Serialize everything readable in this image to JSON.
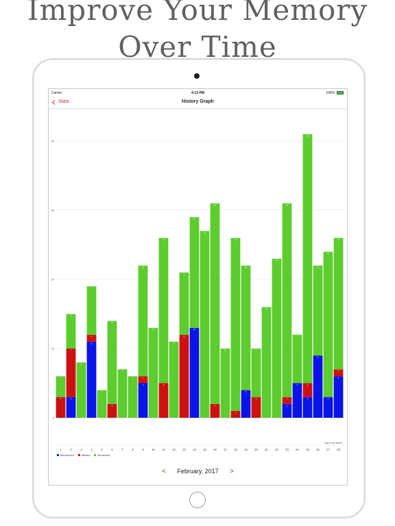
{
  "promo": {
    "line1": "Improve Your Memory",
    "line2": "Over Time"
  },
  "status_bar": {
    "carrier": "Carrier",
    "time": "4:13 PM",
    "battery": "100%"
  },
  "nav": {
    "back_label": "Stats",
    "title": "History Graph"
  },
  "footer": {
    "month_label": "February, 2017",
    "prev_icon": "chevron-left-icon",
    "next_icon": "chevron-right-icon"
  },
  "colors": {
    "memorized": "#0a14e6",
    "missed": "#cc1111",
    "reviewed": "#5ccc2e",
    "accent": "#c12a2a"
  },
  "chart_data": {
    "type": "bar",
    "stacked": true,
    "xlabel": "Day of the Month",
    "ylim": [
      0,
      45
    ],
    "yticks": [
      0,
      10,
      20,
      30,
      40
    ],
    "categories": [
      "1",
      "2",
      "3",
      "4",
      "5",
      "6",
      "7",
      "8",
      "9",
      "10",
      "11",
      "12",
      "13",
      "14",
      "15",
      "16",
      "17",
      "18",
      "19",
      "20",
      "21",
      "22",
      "23",
      "24",
      "25",
      "26",
      "27",
      "28"
    ],
    "series": [
      {
        "name": "Memorized",
        "values": [
          0,
          3,
          0,
          11,
          0,
          0,
          0,
          0,
          5,
          0,
          0,
          0,
          0,
          13,
          0,
          0,
          0,
          0,
          4,
          0,
          0,
          0,
          2,
          5,
          3,
          9,
          3,
          6
        ]
      },
      {
        "name": "Missed",
        "values": [
          3,
          7,
          0,
          1,
          0,
          2,
          0,
          0,
          1,
          0,
          5,
          0,
          12,
          0,
          0,
          2,
          0,
          1,
          0,
          3,
          0,
          0,
          1,
          0,
          2,
          0,
          0,
          1
        ]
      },
      {
        "name": "Reviewed",
        "values": [
          3,
          5,
          8,
          7,
          4,
          12,
          7,
          6,
          16,
          13,
          21,
          11,
          9,
          16,
          27,
          29,
          10,
          25,
          18,
          7,
          16,
          23,
          28,
          7,
          36,
          13,
          21,
          19
        ]
      }
    ],
    "legend": [
      "Memorized",
      "Missed",
      "Reviewed"
    ],
    "legend_position": "bottom-left",
    "grid": true
  }
}
